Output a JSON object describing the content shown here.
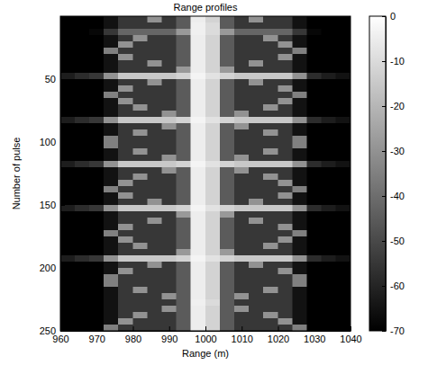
{
  "chart_data": {
    "type": "heatmap",
    "title": "Range profiles",
    "x_label": "Range (m)",
    "y_label": "Number of pulse",
    "x": [
      962,
      966,
      970,
      974,
      978,
      982,
      986,
      990,
      994,
      998,
      1002,
      1006,
      1010,
      1014,
      1018,
      1022,
      1026,
      1030,
      1034,
      1038
    ],
    "y": [
      2.5,
      7.5,
      12.5,
      17.5,
      22.5,
      27.5,
      32.5,
      37.5,
      42.5,
      47.5,
      52.5,
      57.5,
      62.5,
      67.5,
      72.5,
      77.5,
      82.5,
      87.5,
      92.5,
      97.5,
      102.5,
      107.5,
      112.5,
      117.5,
      122.5,
      127.5,
      132.5,
      137.5,
      142.5,
      147.5,
      152.5,
      157.5,
      162.5,
      167.5,
      172.5,
      177.5,
      182.5,
      187.5,
      192.5,
      197.5,
      202.5,
      207.5,
      212.5,
      217.5,
      222.5,
      227.5,
      232.5,
      237.5,
      242.5,
      247.5
    ],
    "z": [
      [
        -70,
        -70,
        -70,
        -65,
        -55,
        -55,
        -30,
        -55,
        -45,
        -5,
        -12,
        -45,
        -55,
        -30,
        -55,
        -55,
        -65,
        -70,
        -70,
        -70
      ],
      [
        -70,
        -70,
        -70,
        -65,
        -55,
        -55,
        -55,
        -55,
        -45,
        -4,
        -10,
        -45,
        -55,
        -55,
        -55,
        -55,
        -65,
        -70,
        -70,
        -70
      ],
      [
        -70,
        -70,
        -68,
        -55,
        -42,
        -42,
        -42,
        -42,
        -28,
        -4,
        -10,
        -28,
        -42,
        -42,
        -42,
        -42,
        -55,
        -68,
        -70,
        -70
      ],
      [
        -70,
        -70,
        -70,
        -65,
        -55,
        -30,
        -55,
        -55,
        -45,
        -5,
        -12,
        -45,
        -55,
        -55,
        -30,
        -55,
        -65,
        -70,
        -70,
        -70
      ],
      [
        -70,
        -70,
        -70,
        -65,
        -30,
        -55,
        -55,
        -55,
        -45,
        -5,
        -12,
        -45,
        -55,
        -55,
        -55,
        -30,
        -65,
        -70,
        -70,
        -70
      ],
      [
        -70,
        -70,
        -70,
        -35,
        -55,
        -55,
        -55,
        -55,
        -45,
        -5,
        -12,
        -45,
        -55,
        -55,
        -55,
        -55,
        -35,
        -70,
        -70,
        -70
      ],
      [
        -70,
        -70,
        -70,
        -65,
        -30,
        -55,
        -55,
        -55,
        -45,
        -5,
        -12,
        -45,
        -55,
        -55,
        -55,
        -30,
        -65,
        -70,
        -70,
        -70
      ],
      [
        -70,
        -70,
        -70,
        -65,
        -55,
        -55,
        -30,
        -55,
        -45,
        -5,
        -12,
        -45,
        -55,
        -30,
        -55,
        -55,
        -65,
        -70,
        -70,
        -70
      ],
      [
        -70,
        -70,
        -70,
        -65,
        -55,
        -55,
        -55,
        -55,
        -28,
        -5,
        -12,
        -28,
        -55,
        -55,
        -55,
        -55,
        -65,
        -70,
        -70,
        -70
      ],
      [
        -62,
        -58,
        -55,
        -30,
        -15,
        -15,
        -15,
        -15,
        -12,
        -3,
        -8,
        -12,
        -15,
        -15,
        -15,
        -15,
        -30,
        -58,
        -62,
        -65
      ],
      [
        -70,
        -70,
        -70,
        -65,
        -55,
        -55,
        -30,
        -55,
        -45,
        -5,
        -12,
        -45,
        -55,
        -30,
        -55,
        -55,
        -65,
        -70,
        -70,
        -70
      ],
      [
        -70,
        -70,
        -70,
        -65,
        -30,
        -55,
        -55,
        -55,
        -45,
        -5,
        -12,
        -45,
        -55,
        -55,
        -55,
        -30,
        -65,
        -70,
        -70,
        -70
      ],
      [
        -70,
        -70,
        -70,
        -35,
        -55,
        -55,
        -55,
        -55,
        -45,
        -5,
        -12,
        -45,
        -55,
        -55,
        -55,
        -55,
        -35,
        -70,
        -70,
        -70
      ],
      [
        -70,
        -70,
        -70,
        -65,
        -30,
        -55,
        -55,
        -55,
        -45,
        -5,
        -12,
        -45,
        -55,
        -55,
        -55,
        -30,
        -65,
        -70,
        -70,
        -70
      ],
      [
        -70,
        -70,
        -70,
        -65,
        -55,
        -30,
        -55,
        -55,
        -45,
        -5,
        -12,
        -45,
        -55,
        -55,
        -30,
        -55,
        -65,
        -70,
        -70,
        -70
      ],
      [
        -70,
        -70,
        -70,
        -65,
        -55,
        -55,
        -55,
        -30,
        -45,
        -5,
        -12,
        -45,
        -30,
        -55,
        -55,
        -55,
        -65,
        -70,
        -70,
        -70
      ],
      [
        -62,
        -58,
        -55,
        -30,
        -15,
        -15,
        -15,
        -15,
        -12,
        -3,
        -8,
        -12,
        -15,
        -15,
        -15,
        -15,
        -30,
        -58,
        -62,
        -65
      ],
      [
        -70,
        -70,
        -70,
        -65,
        -55,
        -55,
        -55,
        -30,
        -45,
        -5,
        -12,
        -45,
        -30,
        -55,
        -55,
        -55,
        -65,
        -70,
        -70,
        -70
      ],
      [
        -70,
        -70,
        -70,
        -65,
        -55,
        -30,
        -55,
        -55,
        -45,
        -5,
        -12,
        -45,
        -55,
        -55,
        -30,
        -55,
        -65,
        -70,
        -70,
        -70
      ],
      [
        -70,
        -70,
        -70,
        -35,
        -55,
        -55,
        -55,
        -55,
        -45,
        -5,
        -12,
        -45,
        -55,
        -55,
        -55,
        -55,
        -35,
        -70,
        -70,
        -70
      ],
      [
        -70,
        -70,
        -70,
        -35,
        -55,
        -55,
        -55,
        -55,
        -45,
        -5,
        -12,
        -45,
        -55,
        -55,
        -55,
        -55,
        -35,
        -70,
        -70,
        -70
      ],
      [
        -70,
        -70,
        -70,
        -65,
        -55,
        -30,
        -55,
        -55,
        -45,
        -5,
        -12,
        -45,
        -55,
        -55,
        -30,
        -55,
        -65,
        -70,
        -70,
        -70
      ],
      [
        -70,
        -70,
        -70,
        -65,
        -55,
        -55,
        -55,
        -30,
        -45,
        -5,
        -12,
        -45,
        -30,
        -55,
        -55,
        -55,
        -65,
        -70,
        -70,
        -70
      ],
      [
        -62,
        -58,
        -55,
        -30,
        -15,
        -15,
        -15,
        -15,
        -12,
        -3,
        -8,
        -12,
        -15,
        -15,
        -15,
        -15,
        -30,
        -58,
        -62,
        -65
      ],
      [
        -70,
        -70,
        -70,
        -65,
        -55,
        -55,
        -55,
        -30,
        -45,
        -5,
        -12,
        -45,
        -30,
        -55,
        -55,
        -55,
        -65,
        -70,
        -70,
        -70
      ],
      [
        -70,
        -70,
        -70,
        -65,
        -55,
        -30,
        -55,
        -55,
        -45,
        -5,
        -12,
        -45,
        -55,
        -55,
        -30,
        -55,
        -65,
        -70,
        -70,
        -70
      ],
      [
        -70,
        -70,
        -70,
        -65,
        -30,
        -55,
        -55,
        -55,
        -45,
        -5,
        -12,
        -45,
        -55,
        -55,
        -55,
        -30,
        -65,
        -70,
        -70,
        -70
      ],
      [
        -70,
        -70,
        -70,
        -35,
        -55,
        -55,
        -55,
        -55,
        -45,
        -5,
        -12,
        -45,
        -55,
        -55,
        -55,
        -55,
        -35,
        -70,
        -70,
        -70
      ],
      [
        -70,
        -70,
        -70,
        -65,
        -30,
        -55,
        -55,
        -55,
        -45,
        -5,
        -12,
        -45,
        -55,
        -55,
        -55,
        -30,
        -65,
        -70,
        -70,
        -70
      ],
      [
        -70,
        -70,
        -70,
        -65,
        -55,
        -55,
        -30,
        -55,
        -45,
        -5,
        -12,
        -45,
        -55,
        -30,
        -55,
        -55,
        -65,
        -70,
        -70,
        -70
      ],
      [
        -62,
        -58,
        -55,
        -30,
        -15,
        -15,
        -15,
        -15,
        -12,
        -3,
        -8,
        -12,
        -15,
        -15,
        -15,
        -15,
        -30,
        -58,
        -62,
        -65
      ],
      [
        -70,
        -70,
        -70,
        -65,
        -55,
        -55,
        -55,
        -55,
        -28,
        -5,
        -12,
        -28,
        -55,
        -55,
        -55,
        -55,
        -65,
        -70,
        -70,
        -70
      ],
      [
        -70,
        -70,
        -70,
        -65,
        -55,
        -55,
        -30,
        -55,
        -45,
        -5,
        -12,
        -45,
        -55,
        -30,
        -55,
        -55,
        -65,
        -70,
        -70,
        -70
      ],
      [
        -70,
        -70,
        -70,
        -65,
        -30,
        -55,
        -55,
        -55,
        -45,
        -5,
        -12,
        -45,
        -55,
        -55,
        -55,
        -30,
        -65,
        -70,
        -70,
        -70
      ],
      [
        -70,
        -70,
        -70,
        -35,
        -55,
        -55,
        -55,
        -55,
        -45,
        -5,
        -12,
        -45,
        -55,
        -55,
        -55,
        -55,
        -35,
        -70,
        -70,
        -70
      ],
      [
        -70,
        -70,
        -70,
        -65,
        -30,
        -55,
        -55,
        -55,
        -45,
        -5,
        -12,
        -45,
        -55,
        -55,
        -55,
        -30,
        -65,
        -70,
        -70,
        -70
      ],
      [
        -70,
        -70,
        -70,
        -65,
        -55,
        -30,
        -55,
        -55,
        -45,
        -5,
        -12,
        -45,
        -55,
        -55,
        -30,
        -55,
        -65,
        -70,
        -70,
        -70
      ],
      [
        -70,
        -70,
        -70,
        -65,
        -55,
        -55,
        -55,
        -55,
        -28,
        -5,
        -12,
        -28,
        -55,
        -55,
        -55,
        -55,
        -65,
        -70,
        -70,
        -70
      ],
      [
        -62,
        -58,
        -55,
        -30,
        -15,
        -15,
        -15,
        -15,
        -12,
        -3,
        -8,
        -12,
        -15,
        -15,
        -15,
        -15,
        -30,
        -58,
        -62,
        -65
      ],
      [
        -70,
        -70,
        -70,
        -65,
        -55,
        -55,
        -30,
        -55,
        -45,
        -5,
        -12,
        -45,
        -55,
        -30,
        -55,
        -55,
        -65,
        -70,
        -70,
        -70
      ],
      [
        -70,
        -70,
        -70,
        -65,
        -30,
        -55,
        -55,
        -55,
        -45,
        -5,
        -12,
        -45,
        -55,
        -55,
        -55,
        -30,
        -65,
        -70,
        -70,
        -70
      ],
      [
        -70,
        -70,
        -70,
        -35,
        -55,
        -55,
        -55,
        -55,
        -45,
        -5,
        -12,
        -45,
        -55,
        -55,
        -55,
        -55,
        -35,
        -70,
        -70,
        -70
      ],
      [
        -70,
        -70,
        -70,
        -35,
        -55,
        -55,
        -55,
        -55,
        -45,
        -5,
        -12,
        -45,
        -55,
        -55,
        -55,
        -55,
        -35,
        -70,
        -70,
        -70
      ],
      [
        -70,
        -70,
        -70,
        -65,
        -55,
        -30,
        -55,
        -55,
        -45,
        -5,
        -12,
        -45,
        -55,
        -55,
        -30,
        -55,
        -65,
        -70,
        -70,
        -70
      ],
      [
        -70,
        -70,
        -70,
        -65,
        -55,
        -55,
        -55,
        -30,
        -45,
        -5,
        -12,
        -45,
        -30,
        -55,
        -55,
        -55,
        -65,
        -70,
        -70,
        -70
      ],
      [
        -70,
        -70,
        -70,
        -65,
        -55,
        -55,
        -55,
        -55,
        -45,
        -4,
        -10,
        -45,
        -55,
        -55,
        -55,
        -55,
        -65,
        -70,
        -70,
        -70
      ],
      [
        -70,
        -70,
        -70,
        -65,
        -55,
        -55,
        -55,
        -30,
        -45,
        -5,
        -12,
        -45,
        -30,
        -55,
        -55,
        -55,
        -65,
        -70,
        -70,
        -70
      ],
      [
        -70,
        -70,
        -70,
        -65,
        -55,
        -30,
        -55,
        -55,
        -45,
        -5,
        -12,
        -45,
        -55,
        -55,
        -30,
        -55,
        -65,
        -70,
        -70,
        -70
      ],
      [
        -70,
        -70,
        -70,
        -65,
        -30,
        -55,
        -55,
        -55,
        -45,
        -5,
        -12,
        -45,
        -55,
        -55,
        -55,
        -30,
        -65,
        -70,
        -70,
        -70
      ],
      [
        -70,
        -70,
        -70,
        -35,
        -55,
        -55,
        -55,
        -55,
        -45,
        -5,
        -12,
        -45,
        -55,
        -55,
        -55,
        -55,
        -35,
        -70,
        -70,
        -70
      ]
    ],
    "xlim": [
      960,
      1040
    ],
    "xticks": [
      960,
      970,
      980,
      990,
      1000,
      1010,
      1020,
      1030,
      1040
    ],
    "ylim": [
      0,
      250
    ],
    "yticks": [
      50,
      100,
      150,
      200,
      250
    ],
    "clim": [
      -70,
      0
    ],
    "cticks": [
      0,
      -10,
      -20,
      -30,
      -40,
      -50,
      -60,
      -70
    ],
    "grid": false
  }
}
